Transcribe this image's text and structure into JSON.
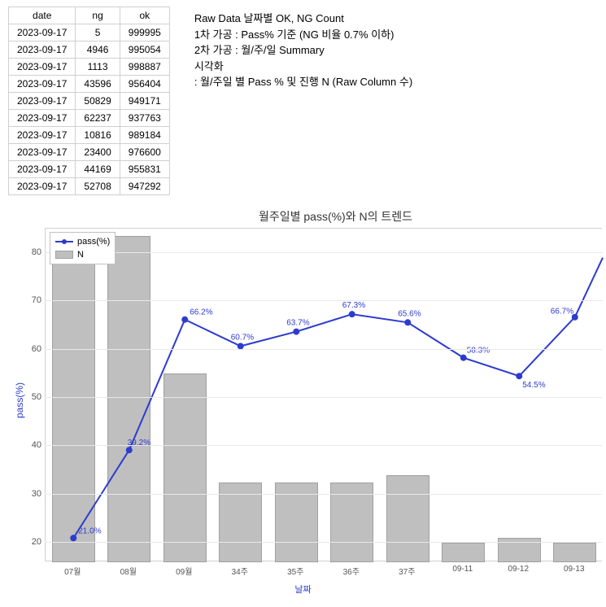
{
  "table": {
    "headers": [
      "date",
      "ng",
      "ok"
    ],
    "rows": [
      [
        "2023-09-17",
        "5",
        "999995"
      ],
      [
        "2023-09-17",
        "4946",
        "995054"
      ],
      [
        "2023-09-17",
        "1113",
        "998887"
      ],
      [
        "2023-09-17",
        "43596",
        "956404"
      ],
      [
        "2023-09-17",
        "50829",
        "949171"
      ],
      [
        "2023-09-17",
        "62237",
        "937763"
      ],
      [
        "2023-09-17",
        "10816",
        "989184"
      ],
      [
        "2023-09-17",
        "23400",
        "976600"
      ],
      [
        "2023-09-17",
        "44169",
        "955831"
      ],
      [
        "2023-09-17",
        "52708",
        "947292"
      ]
    ]
  },
  "notes": {
    "line1": "Raw Data 날짜별 OK, NG Count",
    "line2": "1차 가공 : Pass% 기준 (NG 비율 0.7% 이하)",
    "line3": "2차 가공 : 월/주/일 Summary",
    "line4": "시각화",
    "line5": " : 월/주일 별 Pass % 및 진행 N (Raw Column 수)"
  },
  "chart": {
    "title": "월주일별 pass(%)와 N의 트렌드",
    "type": "bar_and_line",
    "y_axis": {
      "label": "pass(%)",
      "min": 16,
      "max": 85,
      "ticks": [
        20,
        30,
        40,
        50,
        60,
        70,
        80
      ]
    },
    "x_axis": {
      "label": "날짜"
    },
    "categories": [
      "07월",
      "08월",
      "09월",
      "34주",
      "35주",
      "36주",
      "37주",
      "09-11",
      "09-12",
      "09-13"
    ],
    "bars": {
      "name": "N",
      "values": [
        80,
        83.5,
        55,
        32.5,
        32.5,
        32.5,
        34,
        20,
        21,
        20
      ],
      "color": "#bfbfbf",
      "border_color": "#a0a0a0",
      "width_frac": 0.78
    },
    "line": {
      "name": "pass(%)",
      "values": [
        21.0,
        39.2,
        66.2,
        60.7,
        63.7,
        67.3,
        65.6,
        58.3,
        54.5,
        66.7
      ],
      "labels": [
        "21.0%",
        "39.2%",
        "66.2%",
        "60.7%",
        "63.7%",
        "67.3%",
        "65.6%",
        "58.3%",
        "54.5%",
        "66.7%"
      ],
      "color": "#2e3bcf",
      "marker_radius": 4,
      "last_point_rises": 79
    },
    "legend": {
      "pass_label": "pass(%)",
      "n_label": "N"
    },
    "colors": {
      "grid": "#e8e8e8",
      "axis_text": "#555555",
      "label": "#2e3bcf",
      "background": "#ffffff"
    }
  }
}
